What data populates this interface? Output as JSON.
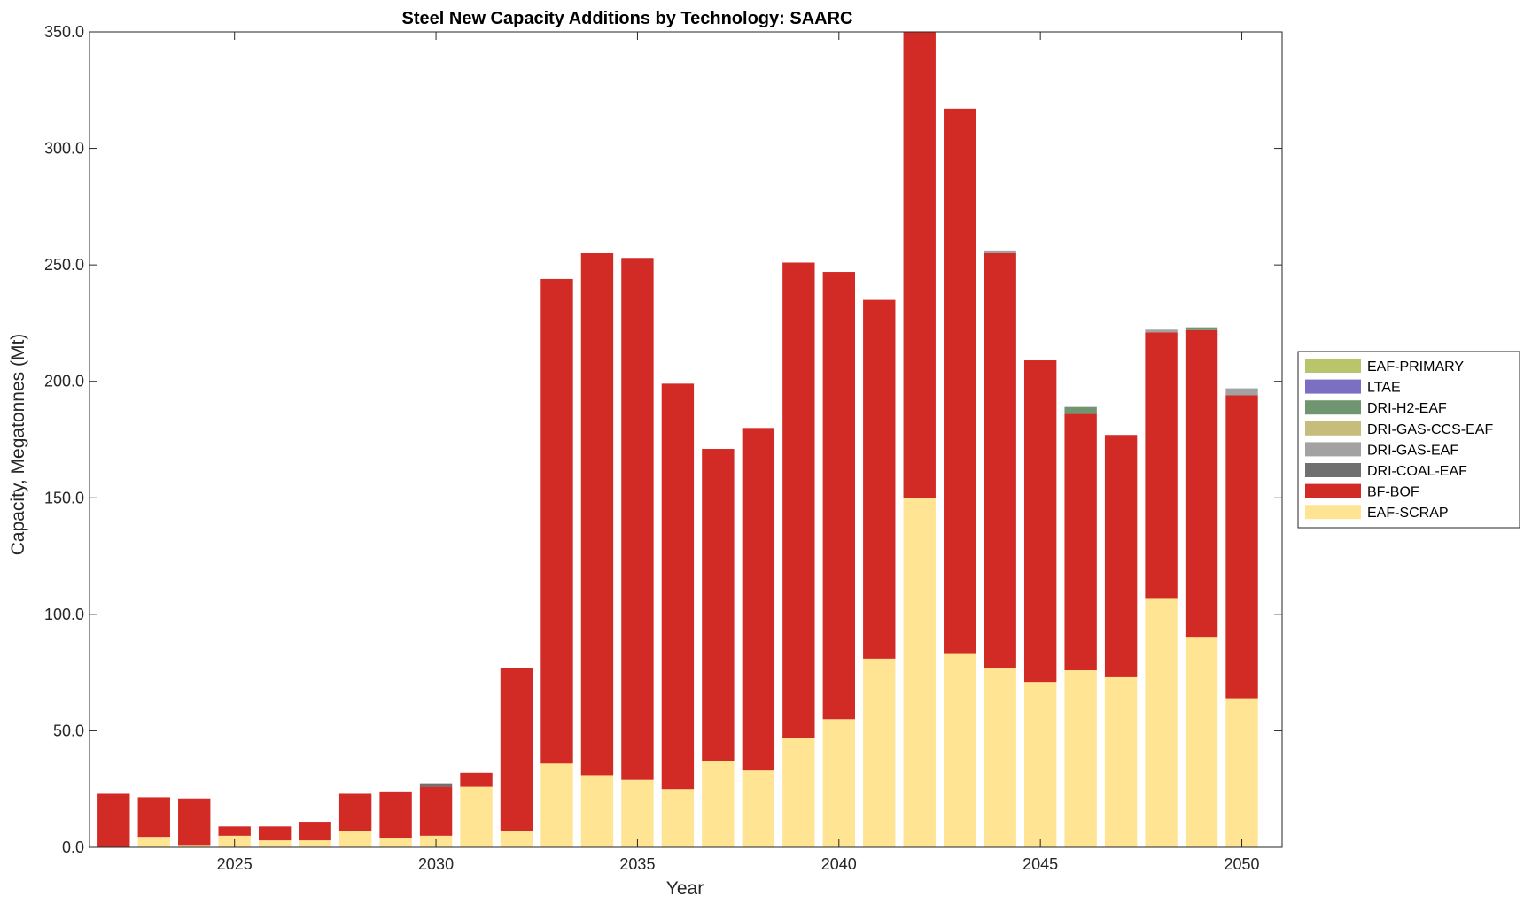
{
  "chart_data": {
    "type": "bar",
    "stacked": true,
    "title": "Steel New Capacity Additions by Technology: SAARC",
    "xlabel": "Year",
    "ylabel": "Capacity, Megatonnes (Mt)",
    "ylim": [
      0,
      350
    ],
    "xlim": [
      2021.4,
      2051.0
    ],
    "yticks": [
      0,
      50,
      100,
      150,
      200,
      250,
      300,
      350
    ],
    "ytick_labels": [
      "0.0",
      "50.0",
      "100.0",
      "150.0",
      "200.0",
      "250.0",
      "300.0",
      "350.0"
    ],
    "xticks": [
      2025,
      2030,
      2035,
      2040,
      2045,
      2050
    ],
    "xtick_labels": [
      "2025",
      "2030",
      "2035",
      "2040",
      "2045",
      "2050"
    ],
    "grid": false,
    "legend_position": "right",
    "categories": [
      2022,
      2023,
      2024,
      2025,
      2026,
      2027,
      2028,
      2029,
      2030,
      2031,
      2032,
      2033,
      2034,
      2035,
      2036,
      2037,
      2038,
      2039,
      2040,
      2041,
      2042,
      2043,
      2044,
      2045,
      2046,
      2047,
      2048,
      2049,
      2050
    ],
    "series": [
      {
        "name": "EAF-SCRAP",
        "color": "#FFE494",
        "values": [
          0,
          4.5,
          1,
          5,
          3,
          3,
          7,
          4,
          5,
          26,
          7,
          36,
          31,
          29,
          25,
          37,
          33,
          47,
          55,
          81,
          150,
          83,
          77,
          71,
          76,
          73,
          107,
          90,
          64
        ]
      },
      {
        "name": "BF-BOF",
        "color": "#D22A25",
        "values": [
          23,
          17,
          20,
          4,
          6,
          8,
          16,
          20,
          21,
          6,
          70,
          208,
          224,
          224,
          174,
          134,
          147,
          204,
          192,
          154,
          200,
          234,
          178,
          138,
          110,
          104,
          114,
          132,
          130
        ]
      },
      {
        "name": "DRI-COAL-EAF",
        "color": "#707070",
        "values": [
          0,
          0,
          0,
          0,
          0,
          0,
          0,
          0,
          1.5,
          0,
          0,
          0,
          0,
          0,
          0,
          0,
          0,
          0,
          0,
          0,
          0,
          0,
          0,
          0,
          0,
          0,
          0,
          0,
          0
        ]
      },
      {
        "name": "DRI-GAS-EAF",
        "color": "#A2A2A2",
        "values": [
          0,
          0,
          0,
          0,
          0,
          0,
          0,
          0,
          0,
          0,
          0,
          0,
          0,
          0,
          0,
          0,
          0,
          0,
          0,
          0,
          0,
          0,
          1.2,
          0,
          0,
          0,
          1.2,
          0,
          3
        ]
      },
      {
        "name": "DRI-GAS-CCS-EAF",
        "color": "#C6BD7C",
        "values": [
          0,
          0,
          0,
          0,
          0,
          0,
          0,
          0,
          0,
          0,
          0,
          0,
          0,
          0,
          0,
          0,
          0,
          0,
          0,
          0,
          0,
          0,
          0,
          0,
          0,
          0,
          0,
          0,
          0
        ]
      },
      {
        "name": "DRI-H2-EAF",
        "color": "#6F9670",
        "values": [
          0,
          0,
          0,
          0,
          0,
          0,
          0,
          0,
          0,
          0,
          0,
          0,
          0,
          0,
          0,
          0,
          0,
          0,
          0,
          0,
          0,
          0,
          0,
          0,
          3,
          0,
          0,
          1.2,
          0
        ]
      },
      {
        "name": "LTAE",
        "color": "#7B6FC3",
        "values": [
          0,
          0,
          0,
          0,
          0,
          0,
          0,
          0,
          0,
          0,
          0,
          0,
          0,
          0,
          0,
          0,
          0,
          0,
          0,
          0,
          0,
          0,
          0,
          0,
          0,
          0,
          0,
          0,
          0
        ]
      },
      {
        "name": "EAF-PRIMARY",
        "color": "#B9C46B",
        "values": [
          0,
          0,
          0,
          0,
          0,
          0,
          0,
          0,
          0,
          0,
          0,
          0,
          0,
          0,
          0,
          0,
          0,
          0,
          0,
          0,
          0,
          0,
          0,
          0,
          0,
          0,
          0,
          0,
          0
        ]
      }
    ],
    "legend_order": [
      "EAF-PRIMARY",
      "LTAE",
      "DRI-H2-EAF",
      "DRI-GAS-CCS-EAF",
      "DRI-GAS-EAF",
      "DRI-COAL-EAF",
      "BF-BOF",
      "EAF-SCRAP"
    ]
  }
}
